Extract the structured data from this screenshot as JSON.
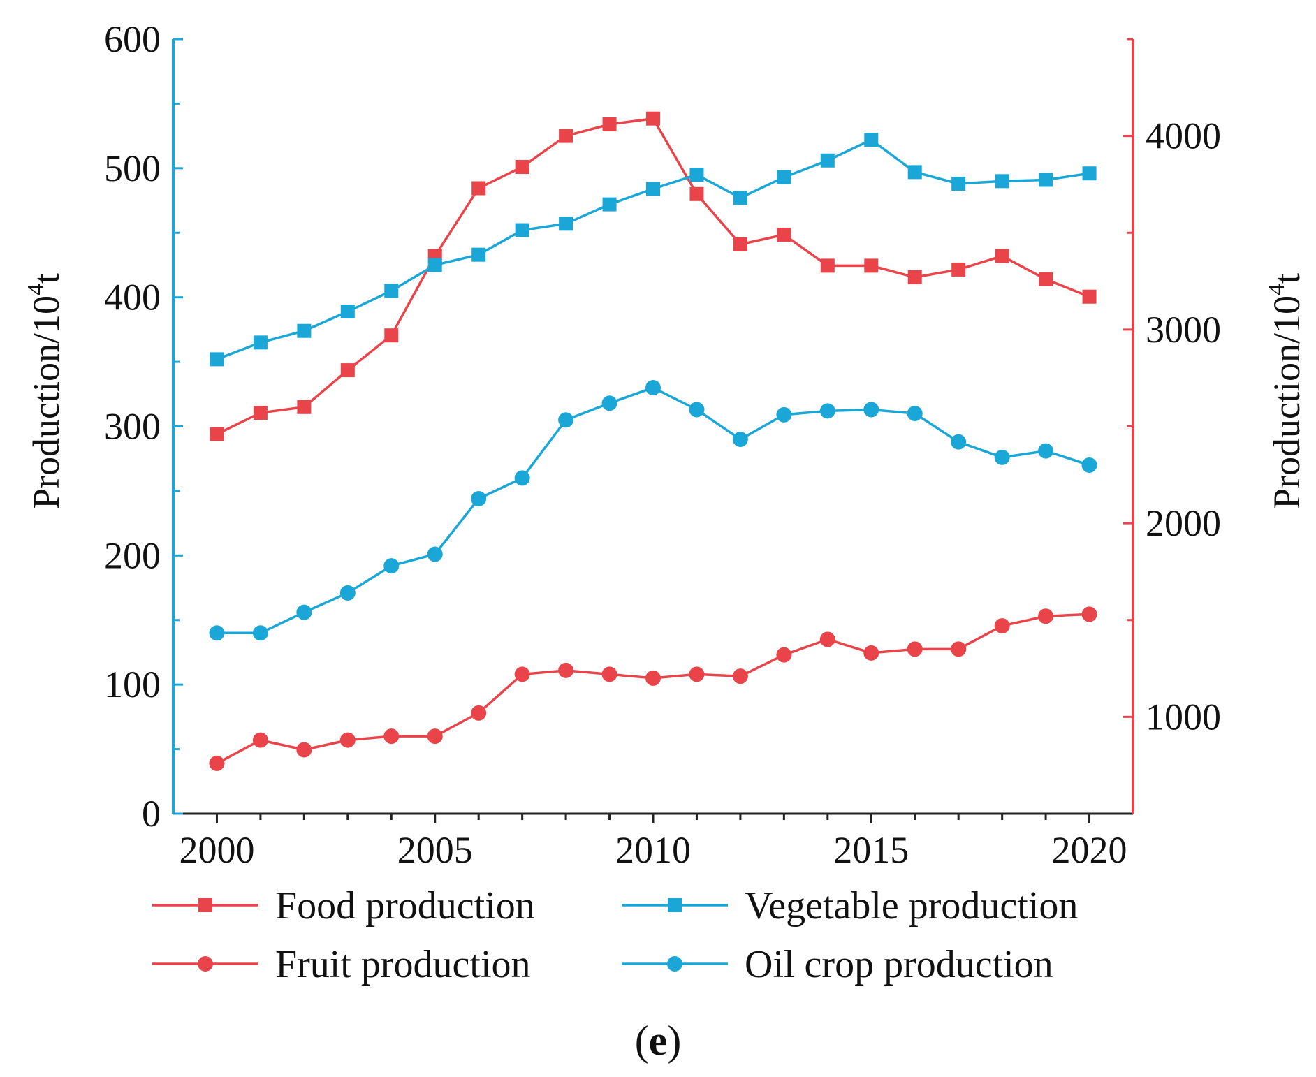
{
  "chart_data": {
    "type": "line",
    "title": "",
    "caption": {
      "open": "(",
      "letter": "e",
      "close": ")"
    },
    "xlabel": "",
    "x": [
      2000,
      2001,
      2002,
      2003,
      2004,
      2005,
      2006,
      2007,
      2008,
      2009,
      2010,
      2011,
      2012,
      2013,
      2014,
      2015,
      2016,
      2017,
      2018,
      2019,
      2020
    ],
    "xlim": [
      1999,
      2021
    ],
    "xticks": [
      2000,
      2005,
      2010,
      2015,
      2020
    ],
    "y_left": {
      "label": {
        "base": "Production/10",
        "sup": "4",
        "unit": "t"
      },
      "lim": [
        0,
        600
      ],
      "ticks": [
        0,
        100,
        200,
        300,
        400,
        500,
        600
      ],
      "color": "#1aa7d8"
    },
    "y_right": {
      "label": {
        "base": "Production/10",
        "sup": "4",
        "unit": "t"
      },
      "lim": [
        500,
        4500
      ],
      "ticks": [
        1000,
        2000,
        3000,
        4000
      ],
      "color": "#e8444a"
    },
    "series": [
      {
        "name": "Food production",
        "axis": "right",
        "marker": "square",
        "color": "#e8444a",
        "values": [
          2460,
          2570,
          2600,
          2790,
          2970,
          3380,
          3730,
          3840,
          4000,
          4060,
          4090,
          3700,
          3440,
          3490,
          3330,
          3330,
          3270,
          3310,
          3380,
          3260,
          3170
        ]
      },
      {
        "name": "Vegetable production",
        "axis": "left",
        "marker": "square",
        "color": "#1aa7d8",
        "values": [
          352,
          365,
          374,
          389,
          405,
          425,
          433,
          452,
          457,
          472,
          484,
          495,
          477,
          493,
          506,
          522,
          497,
          488,
          490,
          491,
          496
        ]
      },
      {
        "name": "Fruit production",
        "axis": "right",
        "marker": "circle",
        "color": "#e8444a",
        "values": [
          760,
          880,
          830,
          880,
          900,
          900,
          1020,
          1220,
          1240,
          1220,
          1200,
          1220,
          1210,
          1320,
          1400,
          1330,
          1350,
          1350,
          1470,
          1520,
          1530
        ]
      },
      {
        "name": "Oil crop production",
        "axis": "left",
        "marker": "circle",
        "color": "#1aa7d8",
        "values": [
          140,
          140,
          156,
          171,
          192,
          201,
          244,
          260,
          305,
          318,
          330,
          313,
          290,
          309,
          312,
          313,
          310,
          288,
          276,
          281,
          270
        ]
      }
    ],
    "legend": {
      "position": "bottom",
      "columns": 2,
      "order": [
        "Food production",
        "Vegetable production",
        "Fruit production",
        "Oil crop production"
      ]
    }
  }
}
